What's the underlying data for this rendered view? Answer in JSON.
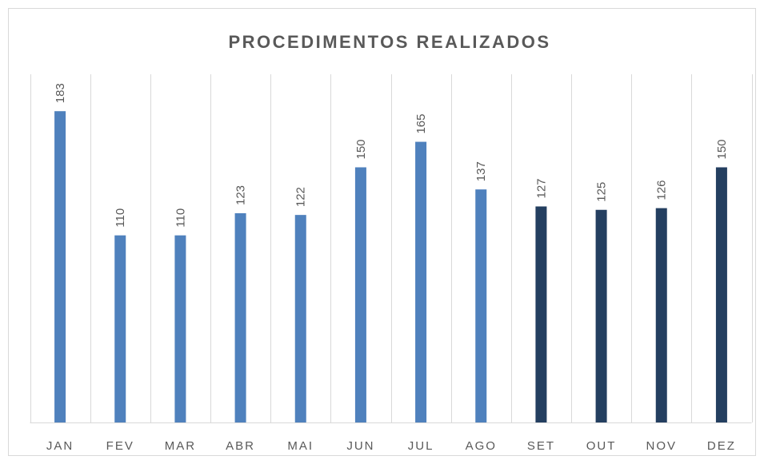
{
  "chart_data": {
    "type": "bar",
    "title": "PROCEDIMENTOS REALIZADOS",
    "categories": [
      "JAN",
      "FEV",
      "MAR",
      "ABR",
      "MAI",
      "JUN",
      "JUL",
      "AGO",
      "SET",
      "OUT",
      "NOV",
      "DEZ"
    ],
    "values": [
      183,
      110,
      110,
      123,
      122,
      150,
      165,
      137,
      127,
      125,
      126,
      150
    ],
    "colors": [
      "#4f81bd",
      "#4f81bd",
      "#4f81bd",
      "#4f81bd",
      "#4f81bd",
      "#4f81bd",
      "#4f81bd",
      "#4f81bd",
      "#243f60",
      "#243f60",
      "#243f60",
      "#243f60"
    ],
    "ylim": [
      0,
      200
    ],
    "data_labels": true
  }
}
